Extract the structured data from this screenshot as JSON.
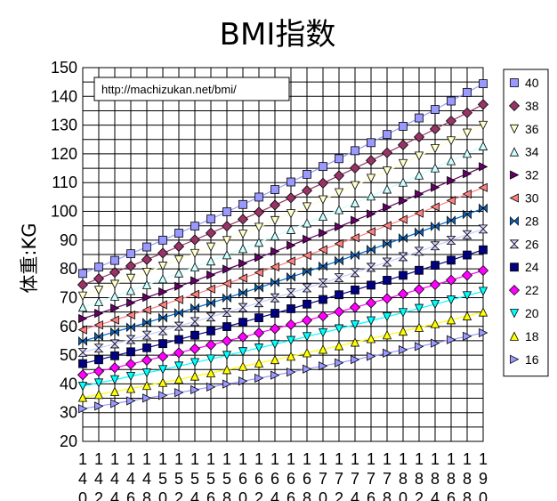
{
  "chart_data": {
    "type": "line",
    "title": "BMI指数",
    "ylabel": "体重:KG",
    "xlabel": "",
    "annotation": "http://machizukan.net/bmi/",
    "x": [
      140,
      142,
      144,
      146,
      148,
      150,
      152,
      154,
      156,
      158,
      160,
      162,
      164,
      166,
      168,
      170,
      172,
      174,
      176,
      178,
      180,
      182,
      184,
      186,
      188,
      190
    ],
    "x_start": 140,
    "x_end": 190,
    "x_step": 2,
    "ylim": [
      20,
      150
    ],
    "y_tick_step": 10,
    "y_ticks": [
      20,
      30,
      40,
      50,
      60,
      70,
      80,
      90,
      100,
      110,
      120,
      130,
      140,
      150
    ],
    "grid": true,
    "legend_position": "right",
    "series": [
      {
        "name": "40",
        "bmi": 40,
        "color": "#9999ff",
        "marker": "square"
      },
      {
        "name": "38",
        "bmi": 38,
        "color": "#993366",
        "marker": "diamond"
      },
      {
        "name": "36",
        "bmi": 36,
        "color": "#ffffcc",
        "marker": "triangle-down"
      },
      {
        "name": "34",
        "bmi": 34,
        "color": "#ccffff",
        "marker": "triangle-up"
      },
      {
        "name": "32",
        "bmi": 32,
        "color": "#660066",
        "marker": "triangle-right"
      },
      {
        "name": "30",
        "bmi": 30,
        "color": "#ff8080",
        "marker": "triangle-left"
      },
      {
        "name": "28",
        "bmi": 28,
        "color": "#0066cc",
        "marker": "bowtie"
      },
      {
        "name": "26",
        "bmi": 26,
        "color": "#ccccff",
        "marker": "hourglass"
      },
      {
        "name": "24",
        "bmi": 24,
        "color": "#000080",
        "marker": "square"
      },
      {
        "name": "22",
        "bmi": 22,
        "color": "#ff00ff",
        "marker": "diamond"
      },
      {
        "name": "20",
        "bmi": 20,
        "color": "#00ffff",
        "marker": "triangle-down"
      },
      {
        "name": "18",
        "bmi": 18,
        "color": "#ffff00",
        "marker": "triangle-up"
      },
      {
        "name": "16",
        "bmi": 16,
        "color": "#9999ff",
        "marker": "triangle-right"
      }
    ]
  }
}
